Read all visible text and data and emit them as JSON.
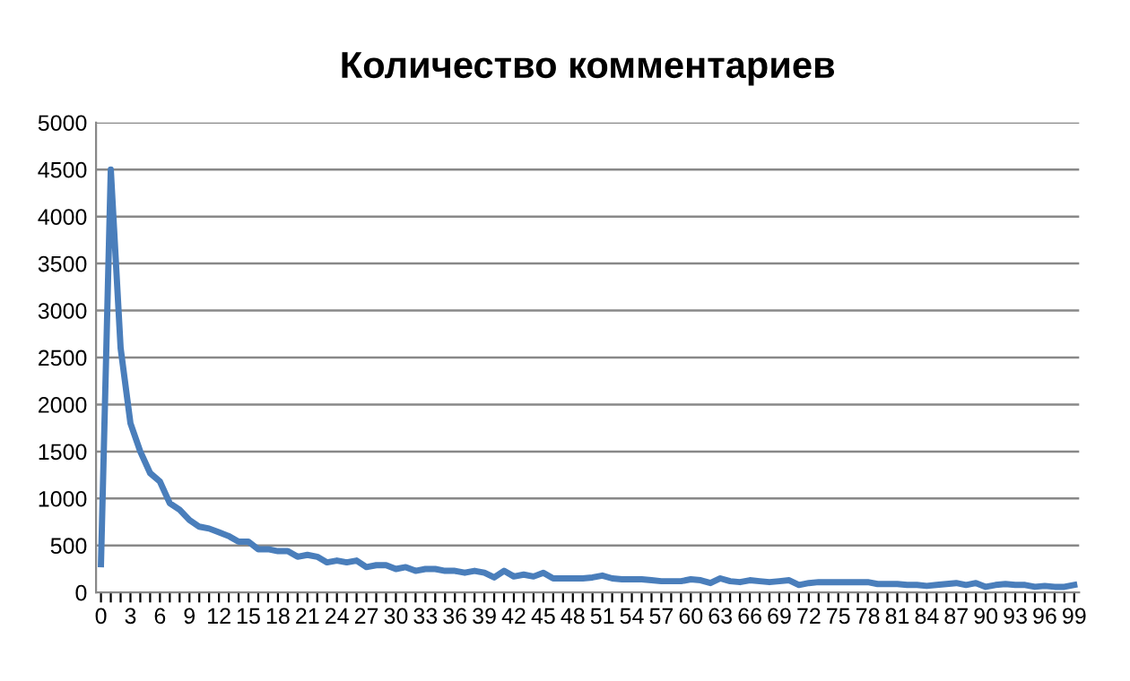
{
  "chart_data": {
    "type": "line",
    "title": "Количество комментариев",
    "categories": [
      "0",
      null,
      null,
      "3",
      null,
      null,
      "6",
      null,
      null,
      "9",
      null,
      null,
      "12",
      null,
      null,
      "15",
      null,
      null,
      "18",
      null,
      null,
      "21",
      null,
      null,
      "24",
      null,
      null,
      "27",
      null,
      null,
      "30",
      null,
      null,
      "33",
      null,
      null,
      "36",
      null,
      null,
      "39",
      null,
      null,
      "42",
      null,
      null,
      "45",
      null,
      null,
      "48",
      null,
      null,
      "51",
      null,
      null,
      "54",
      null,
      null,
      "57",
      null,
      null,
      "60",
      null,
      null,
      "63",
      null,
      null,
      "66",
      null,
      null,
      "69",
      null,
      null,
      "72",
      null,
      null,
      "75",
      null,
      null,
      "78",
      null,
      null,
      "81",
      null,
      null,
      "84",
      null,
      null,
      "87",
      null,
      null,
      "90",
      null,
      null,
      "93",
      null,
      null,
      "96",
      null,
      null,
      "99"
    ],
    "series": [
      {
        "color": "#4a7ebb",
        "values": [
          300,
          4500,
          2600,
          1800,
          1500,
          1270,
          1180,
          950,
          880,
          770,
          700,
          680,
          640,
          600,
          540,
          540,
          460,
          460,
          440,
          440,
          380,
          400,
          380,
          320,
          340,
          320,
          340,
          270,
          290,
          290,
          250,
          270,
          230,
          250,
          250,
          230,
          230,
          210,
          230,
          210,
          160,
          230,
          170,
          190,
          170,
          210,
          150,
          150,
          150,
          150,
          160,
          180,
          150,
          140,
          140,
          140,
          130,
          120,
          120,
          120,
          140,
          130,
          100,
          150,
          120,
          110,
          130,
          120,
          110,
          120,
          130,
          80,
          100,
          110,
          110,
          110,
          110,
          110,
          110,
          90,
          90,
          90,
          80,
          80,
          70,
          80,
          90,
          100,
          80,
          100,
          60,
          80,
          90,
          80,
          80,
          60,
          70,
          60,
          60,
          80
        ]
      }
    ],
    "ylim": [
      0,
      5000
    ],
    "yticks": [
      0,
      500,
      1000,
      1500,
      2000,
      2500,
      3000,
      3500,
      4000,
      4500,
      5000
    ],
    "grid": "y",
    "legend": false,
    "marker": "none",
    "line_style": "solid"
  }
}
